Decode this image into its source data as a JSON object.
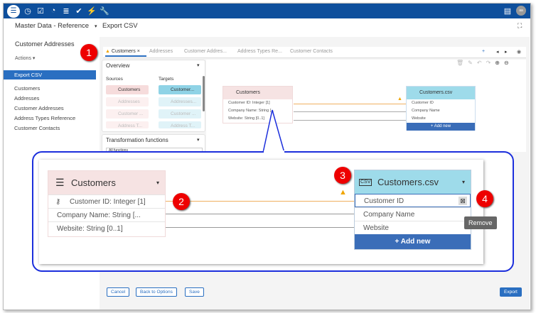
{
  "topbar": {
    "icons": [
      "database-icon",
      "clock-icon",
      "checkbox-icon",
      "gauge-icon",
      "data-list-icon",
      "task-check-icon",
      "plug-icon",
      "wrench-icon"
    ],
    "avatar": "aa",
    "color": "#0e4f9c"
  },
  "header": {
    "project": "Master Data - Reference",
    "page": "Export CSV"
  },
  "sidebar": {
    "title": "Customer Addresses",
    "actions": "Actions",
    "active": "Export CSV",
    "items": [
      "Customers",
      "Addresses",
      "Customer Addresses",
      "Address Types Reference",
      "Customer Contacts"
    ]
  },
  "tabs": [
    "Customers",
    "Addresses",
    "Customer Addres...",
    "Address Types Re...",
    "Customer Contacts"
  ],
  "overview": {
    "title": "Overview",
    "sources_label": "Sources",
    "targets_label": "Targets",
    "sources": [
      "Customers",
      "Addresses",
      "Customer ...",
      "Address T..."
    ],
    "targets": [
      "Customer...",
      "Addresses...",
      "Customer ...",
      "Address T..."
    ]
  },
  "transform": {
    "title": "Transformation functions",
    "select": "All functions"
  },
  "source_node": {
    "title": "Customers",
    "fields": [
      "Customer ID: Integer [1]",
      "Company Name: String [...",
      "Website: String [0..1]"
    ]
  },
  "target_node": {
    "title": "Customers.csv",
    "csv": "CSV",
    "fields": [
      "Customer ID",
      "Company Name",
      "Website"
    ],
    "add": "+ Add new"
  },
  "zoom": {
    "remove_tooltip": "Remove"
  },
  "badges": [
    "1",
    "2",
    "3",
    "4"
  ],
  "footer": {
    "cancel": "Cancel",
    "back": "Back to Options",
    "save": "Save",
    "export": "Export"
  }
}
